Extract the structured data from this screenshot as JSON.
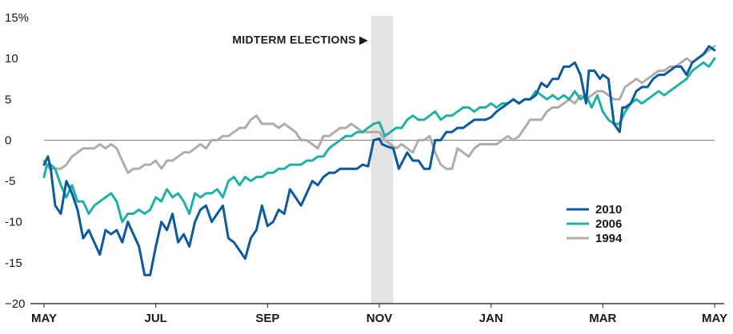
{
  "chart_data": {
    "type": "line",
    "title": "",
    "xlabel": "",
    "ylabel": "",
    "ylim": [
      -20,
      15
    ],
    "xlim": [
      0,
      12
    ],
    "y_ticks": [
      {
        "value": 15,
        "label": "15%"
      },
      {
        "value": 10,
        "label": "10"
      },
      {
        "value": 5,
        "label": "5"
      },
      {
        "value": 0,
        "label": "0"
      },
      {
        "value": -5,
        "label": "-5"
      },
      {
        "value": -10,
        "label": "-10"
      },
      {
        "value": -15,
        "label": "-15"
      },
      {
        "value": -20,
        "label": "−20"
      }
    ],
    "x_ticks": [
      {
        "value": 0,
        "label": "MAY"
      },
      {
        "value": 2,
        "label": "JUL"
      },
      {
        "value": 4,
        "label": "SEP"
      },
      {
        "value": 6,
        "label": "NOV"
      },
      {
        "value": 8,
        "label": "JAN"
      },
      {
        "value": 10,
        "label": "MAR"
      },
      {
        "value": 12,
        "label": "MAY"
      }
    ],
    "shaded_region": {
      "x_start": 5.85,
      "x_end": 6.25,
      "color": "#e3e3e3"
    },
    "annotation": {
      "text": "MIDTERM ELECTIONS ▶",
      "x": 5.8,
      "y": 12.3
    },
    "legend": {
      "position": "right-center"
    },
    "series": [
      {
        "name": "2010",
        "color": "#0b5aa0",
        "x": [
          0,
          0.07,
          0.12,
          0.2,
          0.3,
          0.4,
          0.5,
          0.6,
          0.7,
          0.8,
          0.9,
          1.0,
          1.1,
          1.2,
          1.3,
          1.4,
          1.5,
          1.6,
          1.7,
          1.8,
          1.9,
          2.0,
          2.1,
          2.2,
          2.3,
          2.4,
          2.5,
          2.6,
          2.7,
          2.8,
          2.9,
          3.0,
          3.1,
          3.2,
          3.3,
          3.4,
          3.5,
          3.6,
          3.7,
          3.8,
          3.9,
          4.0,
          4.1,
          4.2,
          4.3,
          4.4,
          4.5,
          4.6,
          4.7,
          4.8,
          4.9,
          5.0,
          5.1,
          5.2,
          5.3,
          5.4,
          5.5,
          5.6,
          5.7,
          5.8,
          5.9,
          6.0,
          6.05,
          6.15,
          6.25,
          6.35,
          6.5,
          6.6,
          6.7,
          6.8,
          6.9,
          7.0,
          7.1,
          7.2,
          7.3,
          7.4,
          7.5,
          7.6,
          7.7,
          7.8,
          7.9,
          8.0,
          8.1,
          8.2,
          8.3,
          8.4,
          8.5,
          8.6,
          8.7,
          8.8,
          8.9,
          9.0,
          9.1,
          9.2,
          9.3,
          9.4,
          9.5,
          9.6,
          9.7,
          9.75,
          9.85,
          9.95,
          10.0,
          10.1,
          10.2,
          10.3,
          10.35,
          10.4,
          10.5,
          10.6,
          10.7,
          10.8,
          10.9,
          11.0,
          11.1,
          11.2,
          11.3,
          11.4,
          11.5,
          11.6,
          11.7,
          11.8,
          11.9,
          12.0
        ],
        "y": [
          -3,
          -2,
          -3.5,
          -8,
          -9,
          -5,
          -6.5,
          -8.5,
          -12,
          -11,
          -12.5,
          -14,
          -11,
          -11.5,
          -11,
          -12.5,
          -10,
          -11.5,
          -13,
          -16.5,
          -16.5,
          -13,
          -10,
          -11,
          -9,
          -12.5,
          -11.5,
          -13,
          -10,
          -8.5,
          -8,
          -10,
          -9,
          -8,
          -12,
          -12.5,
          -13.5,
          -14.5,
          -12,
          -11,
          -8,
          -10.5,
          -10,
          -8.5,
          -9,
          -6,
          -7,
          -8,
          -6.5,
          -5,
          -5.5,
          -4.5,
          -4,
          -4,
          -3.5,
          -3.5,
          -3.5,
          -3.5,
          -3,
          -3.2,
          0,
          0.2,
          -0.5,
          -0.8,
          -1,
          -3.5,
          -1.5,
          -2.5,
          -2.5,
          -3.5,
          -3.5,
          0,
          0,
          1,
          1,
          1.5,
          1.5,
          2,
          2.5,
          2.5,
          2.5,
          2.8,
          3.5,
          4,
          4.5,
          5,
          4.5,
          5,
          5,
          5.5,
          7,
          6.5,
          7.5,
          7.5,
          9,
          9,
          9.5,
          8,
          4.5,
          8.5,
          8.5,
          7.5,
          8,
          7.5,
          2,
          1,
          4,
          4,
          4.5,
          6,
          6.5,
          6.5,
          7.5,
          8,
          8,
          8.5,
          9,
          9,
          8,
          9.5,
          10,
          10.5,
          11.5,
          11
        ]
      },
      {
        "name": "2006",
        "color": "#1fb0a6",
        "x": [
          0,
          0.05,
          0.12,
          0.2,
          0.3,
          0.4,
          0.5,
          0.6,
          0.7,
          0.8,
          0.9,
          1.0,
          1.1,
          1.2,
          1.3,
          1.4,
          1.5,
          1.6,
          1.7,
          1.8,
          1.9,
          2.0,
          2.1,
          2.2,
          2.3,
          2.4,
          2.5,
          2.6,
          2.7,
          2.8,
          2.9,
          3.0,
          3.1,
          3.2,
          3.3,
          3.4,
          3.5,
          3.6,
          3.7,
          3.8,
          3.9,
          4.0,
          4.1,
          4.2,
          4.3,
          4.4,
          4.5,
          4.6,
          4.7,
          4.8,
          4.9,
          5.0,
          5.1,
          5.2,
          5.3,
          5.4,
          5.5,
          5.6,
          5.7,
          5.8,
          5.9,
          6.0,
          6.1,
          6.2,
          6.3,
          6.4,
          6.5,
          6.6,
          6.7,
          6.8,
          6.9,
          7.0,
          7.1,
          7.2,
          7.3,
          7.4,
          7.5,
          7.6,
          7.7,
          7.8,
          7.9,
          8.0,
          8.1,
          8.2,
          8.3,
          8.4,
          8.5,
          8.6,
          8.7,
          8.8,
          8.9,
          9.0,
          9.1,
          9.2,
          9.3,
          9.4,
          9.5,
          9.6,
          9.7,
          9.8,
          9.9,
          10.0,
          10.1,
          10.2,
          10.3,
          10.4,
          10.5,
          10.6,
          10.7,
          10.8,
          10.9,
          11.0,
          11.1,
          11.2,
          11.3,
          11.4,
          11.5,
          11.6,
          11.7,
          11.8,
          11.9,
          12.0
        ],
        "y": [
          -4.5,
          -3,
          -3,
          -3.5,
          -5.5,
          -7,
          -5.5,
          -7.5,
          -7.5,
          -9,
          -8,
          -7.5,
          -7,
          -6.5,
          -7.5,
          -10,
          -9,
          -9,
          -8.5,
          -9,
          -8.5,
          -7,
          -7.5,
          -6,
          -7,
          -6.5,
          -7.5,
          -9,
          -6.5,
          -7,
          -6.5,
          -6.5,
          -6,
          -7,
          -5,
          -4.5,
          -5.5,
          -4.5,
          -5,
          -4.5,
          -4.5,
          -4,
          -4,
          -3.5,
          -3.5,
          -3,
          -3,
          -3,
          -2.5,
          -2.5,
          -2,
          -2,
          -1,
          -0.5,
          0,
          0.5,
          0.5,
          1,
          1,
          1.5,
          2,
          2.2,
          0.5,
          1,
          1.5,
          1.5,
          2.5,
          3,
          2.5,
          2.5,
          3,
          3.5,
          2.5,
          3,
          3,
          3.5,
          4,
          4,
          3.5,
          4,
          4,
          4.5,
          4,
          4.5,
          4.5,
          5,
          4.5,
          5,
          5,
          6,
          5.5,
          5,
          5.5,
          5,
          5.5,
          5,
          6,
          5,
          5.5,
          4,
          5.5,
          3.5,
          2.5,
          2,
          2,
          3.5,
          4.5,
          5,
          4.5,
          5,
          5.5,
          6,
          5.5,
          6,
          6.5,
          7,
          7.5,
          8.5,
          9,
          9.5,
          9,
          10
        ]
      },
      {
        "name": "1994",
        "color": "#b3aca5",
        "x": [
          0,
          0.1,
          0.2,
          0.3,
          0.4,
          0.5,
          0.6,
          0.7,
          0.8,
          0.9,
          1.0,
          1.1,
          1.2,
          1.3,
          1.4,
          1.5,
          1.6,
          1.7,
          1.8,
          1.9,
          2.0,
          2.1,
          2.2,
          2.3,
          2.4,
          2.5,
          2.6,
          2.7,
          2.8,
          2.9,
          3.0,
          3.1,
          3.2,
          3.3,
          3.4,
          3.5,
          3.6,
          3.7,
          3.8,
          3.9,
          4.0,
          4.1,
          4.2,
          4.3,
          4.4,
          4.5,
          4.6,
          4.7,
          4.8,
          4.9,
          5.0,
          5.1,
          5.2,
          5.3,
          5.4,
          5.5,
          5.6,
          5.7,
          5.8,
          5.9,
          6.0,
          6.1,
          6.2,
          6.3,
          6.4,
          6.5,
          6.6,
          6.7,
          6.8,
          6.9,
          7.0,
          7.1,
          7.2,
          7.3,
          7.4,
          7.5,
          7.6,
          7.7,
          7.8,
          7.9,
          8.0,
          8.1,
          8.2,
          8.3,
          8.4,
          8.5,
          8.6,
          8.7,
          8.8,
          8.9,
          9.0,
          9.1,
          9.2,
          9.3,
          9.4,
          9.5,
          9.6,
          9.7,
          9.8,
          9.9,
          10.0,
          10.1,
          10.2,
          10.3,
          10.4,
          10.5,
          10.6,
          10.7,
          10.8,
          10.9,
          11.0,
          11.1,
          11.2,
          11.3,
          11.4,
          11.5,
          11.6,
          11.7,
          11.8,
          11.9,
          12.0
        ],
        "y": [
          -2.5,
          -3.5,
          -3.5,
          -3.5,
          -3,
          -2,
          -1.5,
          -1,
          -1,
          -1,
          -0.5,
          -1,
          -0.5,
          -1,
          -2.5,
          -4,
          -3.5,
          -3.5,
          -3,
          -3,
          -2.5,
          -3.5,
          -2.5,
          -2.5,
          -2,
          -1.5,
          -1.5,
          -1,
          -0.5,
          -1,
          0,
          0,
          0.5,
          0.5,
          1,
          1.5,
          1.5,
          2.5,
          3,
          2,
          2,
          2,
          1.5,
          2,
          1.5,
          1,
          0,
          0,
          -0.5,
          -1,
          0.5,
          0.5,
          1,
          1.5,
          1.5,
          2,
          1.5,
          1,
          1,
          1,
          1,
          0,
          -0.5,
          -1,
          -0.5,
          -1,
          -1.5,
          0,
          0,
          0.5,
          -1.5,
          -3,
          -3.5,
          -3.5,
          -1,
          -1.5,
          -2,
          -1,
          -0.5,
          -0.5,
          -0.5,
          -0.5,
          0,
          0.5,
          0,
          0.5,
          1.5,
          2.5,
          2.5,
          2.5,
          3.5,
          4,
          4,
          4.5,
          5,
          4.5,
          5.5,
          5,
          5.5,
          6,
          6,
          5.5,
          5,
          5,
          6.5,
          7,
          7.5,
          7,
          7.5,
          8,
          8.5,
          8.5,
          9,
          9,
          9.5,
          10,
          9.5,
          10,
          10.5,
          11,
          11.5
        ]
      }
    ]
  }
}
